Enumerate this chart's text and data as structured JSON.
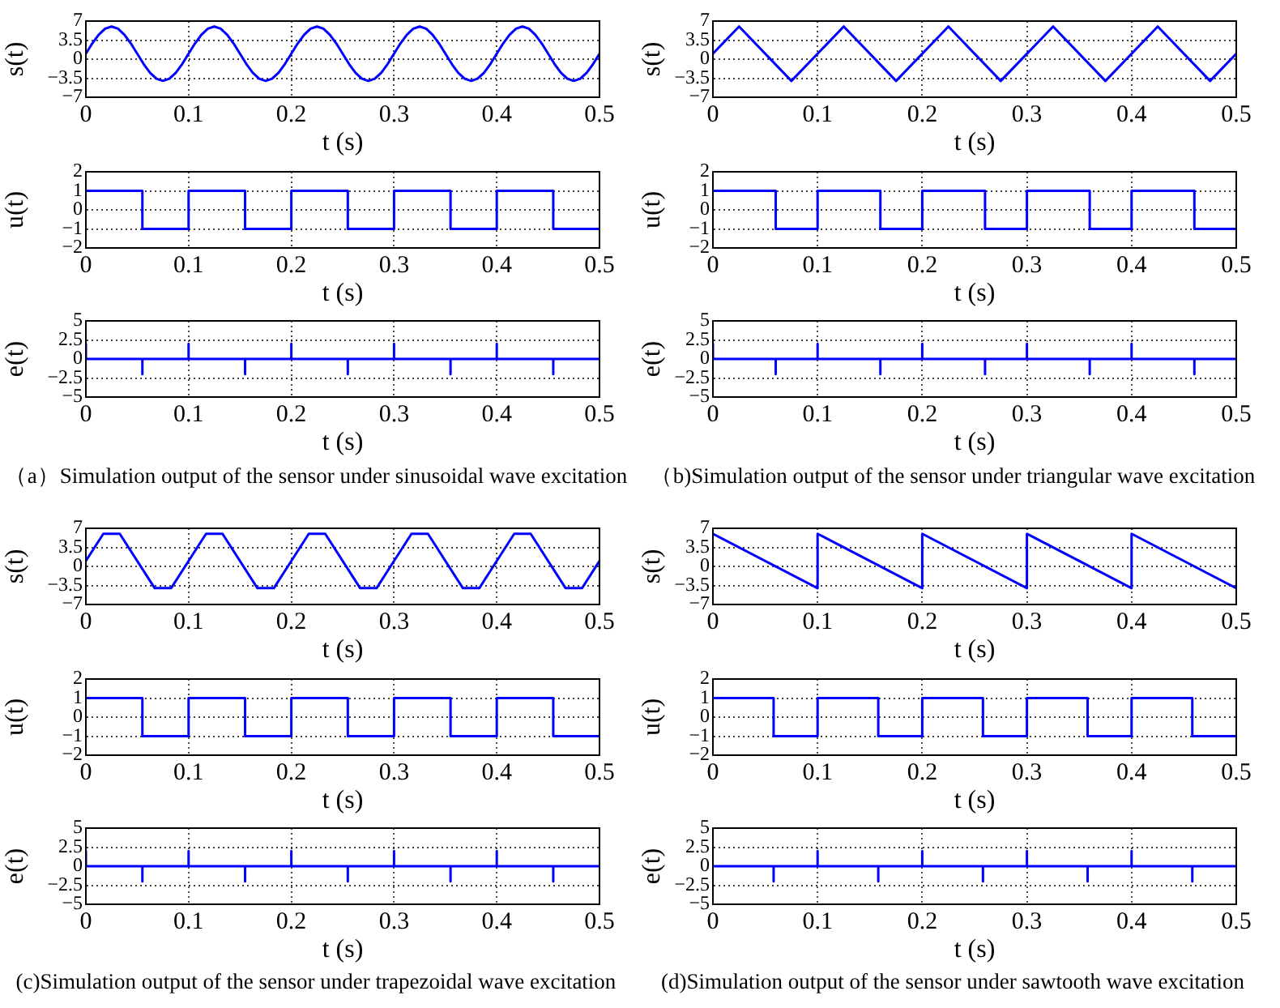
{
  "chart_data": [
    {
      "type": "line",
      "x": [
        0,
        0.00625,
        0.0125,
        0.01875,
        0.025,
        0.03125,
        0.0375,
        0.04375,
        0.05,
        0.05625,
        0.0625,
        0.06875,
        0.075,
        0.08125,
        0.0875,
        0.09375,
        0.1,
        0.10625,
        0.1125,
        0.11875,
        0.125,
        0.13125,
        0.1375,
        0.14375,
        0.15,
        0.15625,
        0.1625,
        0.16875,
        0.175,
        0.18125,
        0.1875,
        0.19375,
        0.2,
        0.20625,
        0.2125,
        0.21875,
        0.225,
        0.23125,
        0.2375,
        0.24375,
        0.25,
        0.25625,
        0.2625,
        0.26875,
        0.275,
        0.28125,
        0.2875,
        0.29375,
        0.3,
        0.30625,
        0.3125,
        0.31875,
        0.325,
        0.33125,
        0.3375,
        0.34375,
        0.35,
        0.35625,
        0.3625,
        0.36875,
        0.375,
        0.38125,
        0.3875,
        0.39375,
        0.4,
        0.40625,
        0.4125,
        0.41875,
        0.425,
        0.43125,
        0.4375,
        0.44375,
        0.45,
        0.45625,
        0.4625,
        0.46875,
        0.475,
        0.48125,
        0.4875,
        0.49375,
        0.5
      ],
      "values": [
        1,
        2.9,
        4.5,
        5.6,
        6,
        5.6,
        4.5,
        2.9,
        1,
        -0.9,
        -2.5,
        -3.6,
        -4,
        -3.6,
        -2.5,
        -0.9,
        1,
        2.9,
        4.5,
        5.6,
        6,
        5.6,
        4.5,
        2.9,
        1,
        -0.9,
        -2.5,
        -3.6,
        -4,
        -3.6,
        -2.5,
        -0.9,
        1,
        2.9,
        4.5,
        5.6,
        6,
        5.6,
        4.5,
        2.9,
        1,
        -0.9,
        -2.5,
        -3.6,
        -4,
        -3.6,
        -2.5,
        -0.9,
        1,
        2.9,
        4.5,
        5.6,
        6,
        5.6,
        4.5,
        2.9,
        1,
        -0.9,
        -2.5,
        -3.6,
        -4,
        -3.6,
        -2.5,
        -0.9,
        1,
        2.9,
        4.5,
        5.6,
        6,
        5.6,
        4.5,
        2.9,
        1,
        -0.9,
        -2.5,
        -3.6,
        -4,
        -3.6,
        -2.5,
        -0.9,
        1
      ],
      "color": "#0000ff",
      "xlabel": "t (s)",
      "ylabel": "s(t)",
      "xlim": [
        0,
        0.5
      ],
      "xticks": [
        0,
        0.1,
        0.2,
        0.3,
        0.4,
        0.5
      ],
      "ylim": [
        -7,
        7
      ],
      "yticks": [
        {
          "value": -7,
          "label": "−7"
        },
        {
          "value": -3.5,
          "label": "−3.5"
        },
        0,
        3.5,
        7
      ],
      "grid": true
    },
    {
      "type": "step",
      "x": [
        0,
        0.055,
        0.1,
        0.155,
        0.2,
        0.255,
        0.3,
        0.355,
        0.4,
        0.455,
        0.5
      ],
      "values": [
        1,
        -1,
        1,
        -1,
        1,
        -1,
        1,
        -1,
        1,
        -1,
        -1
      ],
      "color": "#0000ff",
      "xlabel": "t (s)",
      "ylabel": "u(t)",
      "xlim": [
        0,
        0.5
      ],
      "xticks": [
        0,
        0.1,
        0.2,
        0.3,
        0.4,
        0.5
      ],
      "ylim": [
        -2,
        2
      ],
      "yticks": [
        {
          "value": -2,
          "label": "−2"
        },
        {
          "value": -1,
          "label": "−1"
        },
        0,
        1,
        2
      ],
      "grid": true
    },
    {
      "type": "line",
      "x": [
        0,
        0,
        0.055,
        0.055,
        0.055,
        0.1,
        0.1,
        0.1,
        0.155,
        0.155,
        0.155,
        0.2,
        0.2,
        0.2,
        0.255,
        0.255,
        0.255,
        0.3,
        0.3,
        0.3,
        0.355,
        0.355,
        0.355,
        0.4,
        0.4,
        0.4,
        0.455,
        0.455,
        0.455,
        0.5
      ],
      "values": [
        2,
        0,
        0,
        -2,
        0,
        0,
        2,
        0,
        0,
        -2,
        0,
        0,
        2,
        0,
        0,
        -2,
        0,
        0,
        2,
        0,
        0,
        -2,
        0,
        0,
        2,
        0,
        0,
        -2,
        0,
        0
      ],
      "color": "#0000ff",
      "xlabel": "t (s)",
      "ylabel": "e(t)",
      "xlim": [
        0,
        0.5
      ],
      "xticks": [
        0,
        0.1,
        0.2,
        0.3,
        0.4,
        0.5
      ],
      "ylim": [
        -5,
        5
      ],
      "yticks": [
        {
          "value": -5,
          "label": "−5"
        },
        {
          "value": -2.5,
          "label": "−2.5"
        },
        0,
        2.5,
        5
      ],
      "grid": true,
      "annotations": [
        "（a）Simulation output of the sensor under sinusoidal wave excitation"
      ]
    },
    {
      "type": "line",
      "x": [
        0,
        0.025,
        0.075,
        0.125,
        0.175,
        0.225,
        0.275,
        0.325,
        0.375,
        0.425,
        0.475,
        0.5
      ],
      "values": [
        1,
        6,
        -4,
        6,
        -4,
        6,
        -4,
        6,
        -4,
        6,
        -4,
        1
      ],
      "color": "#0000ff",
      "xlabel": "t (s)",
      "ylabel": "s(t)",
      "xlim": [
        0,
        0.5
      ],
      "xticks": [
        0,
        0.1,
        0.2,
        0.3,
        0.4,
        0.5
      ],
      "ylim": [
        -7,
        7
      ],
      "yticks": [
        {
          "value": -7,
          "label": "−7"
        },
        {
          "value": -3.5,
          "label": "−3.5"
        },
        0,
        3.5,
        7
      ],
      "grid": true
    },
    {
      "type": "step",
      "x": [
        0,
        0.06,
        0.1,
        0.16,
        0.2,
        0.26,
        0.3,
        0.36,
        0.4,
        0.46,
        0.5
      ],
      "values": [
        1,
        -1,
        1,
        -1,
        1,
        -1,
        1,
        -1,
        1,
        -1,
        -1
      ],
      "color": "#0000ff",
      "xlabel": "t (s)",
      "ylabel": "u(t)",
      "xlim": [
        0,
        0.5
      ],
      "xticks": [
        0,
        0.1,
        0.2,
        0.3,
        0.4,
        0.5
      ],
      "ylim": [
        -2,
        2
      ],
      "yticks": [
        {
          "value": -2,
          "label": "−2"
        },
        {
          "value": -1,
          "label": "−1"
        },
        0,
        1,
        2
      ],
      "grid": true
    },
    {
      "type": "line",
      "x": [
        0,
        0,
        0.06,
        0.06,
        0.06,
        0.1,
        0.1,
        0.1,
        0.16,
        0.16,
        0.16,
        0.2,
        0.2,
        0.2,
        0.26,
        0.26,
        0.26,
        0.3,
        0.3,
        0.3,
        0.36,
        0.36,
        0.36,
        0.4,
        0.4,
        0.4,
        0.46,
        0.46,
        0.46,
        0.5
      ],
      "values": [
        2,
        0,
        0,
        -2,
        0,
        0,
        2,
        0,
        0,
        -2,
        0,
        0,
        2,
        0,
        0,
        -2,
        0,
        0,
        2,
        0,
        0,
        -2,
        0,
        0,
        2,
        0,
        0,
        -2,
        0,
        0
      ],
      "color": "#0000ff",
      "xlabel": "t (s)",
      "ylabel": "e(t)",
      "xlim": [
        0,
        0.5
      ],
      "xticks": [
        0,
        0.1,
        0.2,
        0.3,
        0.4,
        0.5
      ],
      "ylim": [
        -5,
        5
      ],
      "yticks": [
        {
          "value": -5,
          "label": "−5"
        },
        {
          "value": -2.5,
          "label": "−2.5"
        },
        0,
        2.5,
        5
      ],
      "grid": true,
      "annotations": [
        "（b)Simulation output of the sensor under triangular wave excitation"
      ]
    },
    {
      "type": "line",
      "x": [
        0,
        0.017,
        0.033,
        0.067,
        0.083,
        0.1,
        0.117,
        0.133,
        0.167,
        0.183,
        0.2,
        0.217,
        0.233,
        0.267,
        0.283,
        0.3,
        0.317,
        0.333,
        0.367,
        0.383,
        0.4,
        0.417,
        0.433,
        0.467,
        0.483,
        0.5
      ],
      "values": [
        1,
        6,
        6,
        -4,
        -4,
        1,
        6,
        6,
        -4,
        -4,
        1,
        6,
        6,
        -4,
        -4,
        1,
        6,
        6,
        -4,
        -4,
        1,
        6,
        6,
        -4,
        -4,
        1
      ],
      "color": "#0000ff",
      "xlabel": "t (s)",
      "ylabel": "s(t)",
      "xlim": [
        0,
        0.5
      ],
      "xticks": [
        0,
        0.1,
        0.2,
        0.3,
        0.4,
        0.5
      ],
      "ylim": [
        -7,
        7
      ],
      "yticks": [
        {
          "value": -7,
          "label": "−7"
        },
        {
          "value": -3.5,
          "label": "−3.5"
        },
        0,
        3.5,
        7
      ],
      "grid": true
    },
    {
      "type": "step",
      "x": [
        0,
        0.055,
        0.1,
        0.155,
        0.2,
        0.255,
        0.3,
        0.355,
        0.4,
        0.455,
        0.5
      ],
      "values": [
        1,
        -1,
        1,
        -1,
        1,
        -1,
        1,
        -1,
        1,
        -1,
        -1
      ],
      "color": "#0000ff",
      "xlabel": "t (s)",
      "ylabel": "u(t)",
      "xlim": [
        0,
        0.5
      ],
      "xticks": [
        0,
        0.1,
        0.2,
        0.3,
        0.4,
        0.5
      ],
      "ylim": [
        -2,
        2
      ],
      "yticks": [
        {
          "value": -2,
          "label": "−2"
        },
        {
          "value": -1,
          "label": "−1"
        },
        0,
        1,
        2
      ],
      "grid": true
    },
    {
      "type": "line",
      "x": [
        0,
        0,
        0.055,
        0.055,
        0.055,
        0.1,
        0.1,
        0.1,
        0.155,
        0.155,
        0.155,
        0.2,
        0.2,
        0.2,
        0.255,
        0.255,
        0.255,
        0.3,
        0.3,
        0.3,
        0.355,
        0.355,
        0.355,
        0.4,
        0.4,
        0.4,
        0.455,
        0.455,
        0.455,
        0.5
      ],
      "values": [
        2,
        0,
        0,
        -2,
        0,
        0,
        2,
        0,
        0,
        -2,
        0,
        0,
        2,
        0,
        0,
        -2,
        0,
        0,
        2,
        0,
        0,
        -2,
        0,
        0,
        2,
        0,
        0,
        -2,
        0,
        0
      ],
      "color": "#0000ff",
      "xlabel": "t (s)",
      "ylabel": "e(t)",
      "xlim": [
        0,
        0.5
      ],
      "xticks": [
        0,
        0.1,
        0.2,
        0.3,
        0.4,
        0.5
      ],
      "ylim": [
        -5,
        5
      ],
      "yticks": [
        {
          "value": -5,
          "label": "−5"
        },
        {
          "value": -2.5,
          "label": "−2.5"
        },
        0,
        2.5,
        5
      ],
      "grid": true,
      "annotations": [
        "(c)Simulation output of the sensor under trapezoidal wave excitation"
      ]
    },
    {
      "type": "line",
      "x": [
        0,
        0.1,
        0.1,
        0.2,
        0.2,
        0.3,
        0.3,
        0.4,
        0.4,
        0.5
      ],
      "values": [
        6,
        -4,
        6,
        -4,
        6,
        -4,
        6,
        -4,
        6,
        -4
      ],
      "color": "#0000ff",
      "xlabel": "t (s)",
      "ylabel": "s(t)",
      "xlim": [
        0,
        0.5
      ],
      "xticks": [
        0,
        0.1,
        0.2,
        0.3,
        0.4,
        0.5
      ],
      "ylim": [
        -7,
        7
      ],
      "yticks": [
        {
          "value": -7,
          "label": "−7"
        },
        {
          "value": -3.5,
          "label": "−3.5"
        },
        0,
        3.5,
        7
      ],
      "grid": true
    },
    {
      "type": "step",
      "x": [
        0,
        0.058,
        0.1,
        0.158,
        0.2,
        0.258,
        0.3,
        0.358,
        0.4,
        0.458,
        0.5
      ],
      "values": [
        1,
        -1,
        1,
        -1,
        1,
        -1,
        1,
        -1,
        1,
        -1,
        -1
      ],
      "color": "#0000ff",
      "xlabel": "t (s)",
      "ylabel": "u(t)",
      "xlim": [
        0,
        0.5
      ],
      "xticks": [
        0,
        0.1,
        0.2,
        0.3,
        0.4,
        0.5
      ],
      "ylim": [
        -2,
        2
      ],
      "yticks": [
        {
          "value": -2,
          "label": "−2"
        },
        {
          "value": -1,
          "label": "−1"
        },
        0,
        1,
        2
      ],
      "grid": true
    },
    {
      "type": "line",
      "x": [
        0,
        0,
        0.058,
        0.058,
        0.058,
        0.1,
        0.1,
        0.1,
        0.158,
        0.158,
        0.158,
        0.2,
        0.2,
        0.2,
        0.258,
        0.258,
        0.258,
        0.3,
        0.3,
        0.3,
        0.358,
        0.358,
        0.358,
        0.4,
        0.4,
        0.4,
        0.458,
        0.458,
        0.458,
        0.5
      ],
      "values": [
        0,
        0,
        0,
        -2,
        0,
        0,
        2,
        0,
        0,
        -2,
        0,
        0,
        2,
        0,
        0,
        -2,
        0,
        0,
        2,
        0,
        0,
        -2,
        0,
        0,
        2,
        0,
        0,
        -2,
        0,
        0
      ],
      "color": "#0000ff",
      "xlabel": "t (s)",
      "ylabel": "e(t)",
      "xlim": [
        0,
        0.5
      ],
      "xticks": [
        0,
        0.1,
        0.2,
        0.3,
        0.4,
        0.5
      ],
      "ylim": [
        -5,
        5
      ],
      "yticks": [
        {
          "value": -5,
          "label": "−5"
        },
        {
          "value": -2.5,
          "label": "−2.5"
        },
        0,
        2.5,
        5
      ],
      "grid": true,
      "annotations": [
        "(d)Simulation output of the sensor under sawtooth wave excitation"
      ]
    }
  ]
}
